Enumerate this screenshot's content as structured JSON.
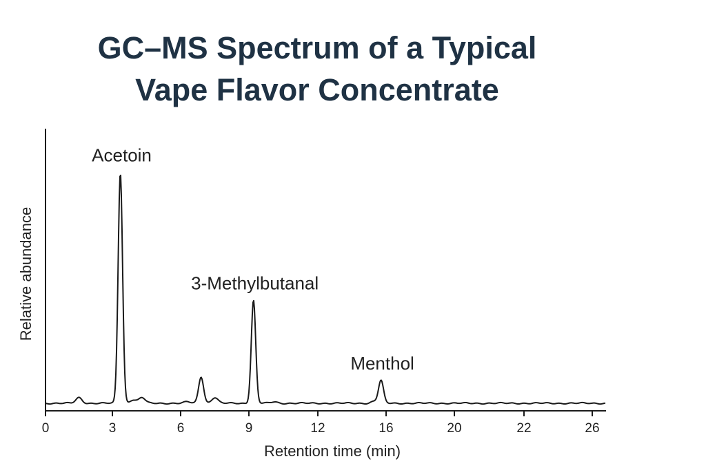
{
  "chart_data": {
    "type": "line",
    "title": "GC–MS Spectrum of a Typical Vape Flavor Concentrate",
    "title_lines": [
      "GC–MS Spectrum of a Typical",
      "Vape Flavor Concentrate"
    ],
    "xlabel": "Retention time (min)",
    "ylabel": "Relative abundance",
    "x_ticks": [
      0,
      3,
      6,
      9,
      12,
      16,
      20,
      22,
      26
    ],
    "x_tick_labels": [
      "0",
      "3",
      "6",
      "9",
      "12",
      "16",
      "20",
      "22",
      "26"
    ],
    "xlim": [
      0,
      26.4
    ],
    "ylim": [
      0,
      119
    ],
    "y_ticks": [],
    "grid": false,
    "legend": "none",
    "line_color": "#1a1a1a",
    "peaks": [
      {
        "rt": 1.5,
        "abundance": 2.4,
        "label": ""
      },
      {
        "rt": 3.35,
        "abundance": 100,
        "label": "Acetoin"
      },
      {
        "rt": 3.9,
        "abundance": 1.5,
        "label": ""
      },
      {
        "rt": 4.3,
        "abundance": 2.5,
        "label": ""
      },
      {
        "rt": 6.3,
        "abundance": 0.6,
        "label": ""
      },
      {
        "rt": 6.9,
        "abundance": 11.5,
        "label": ""
      },
      {
        "rt": 7.5,
        "abundance": 2.5,
        "label": ""
      },
      {
        "rt": 9.2,
        "abundance": 44.6,
        "label": "3-Methylbutanal"
      },
      {
        "rt": 10.1,
        "abundance": 0.6,
        "label": ""
      },
      {
        "rt": 15.3,
        "abundance": 0.8,
        "label": ""
      },
      {
        "rt": 15.7,
        "abundance": 9.8,
        "label": "Menthol"
      }
    ]
  }
}
